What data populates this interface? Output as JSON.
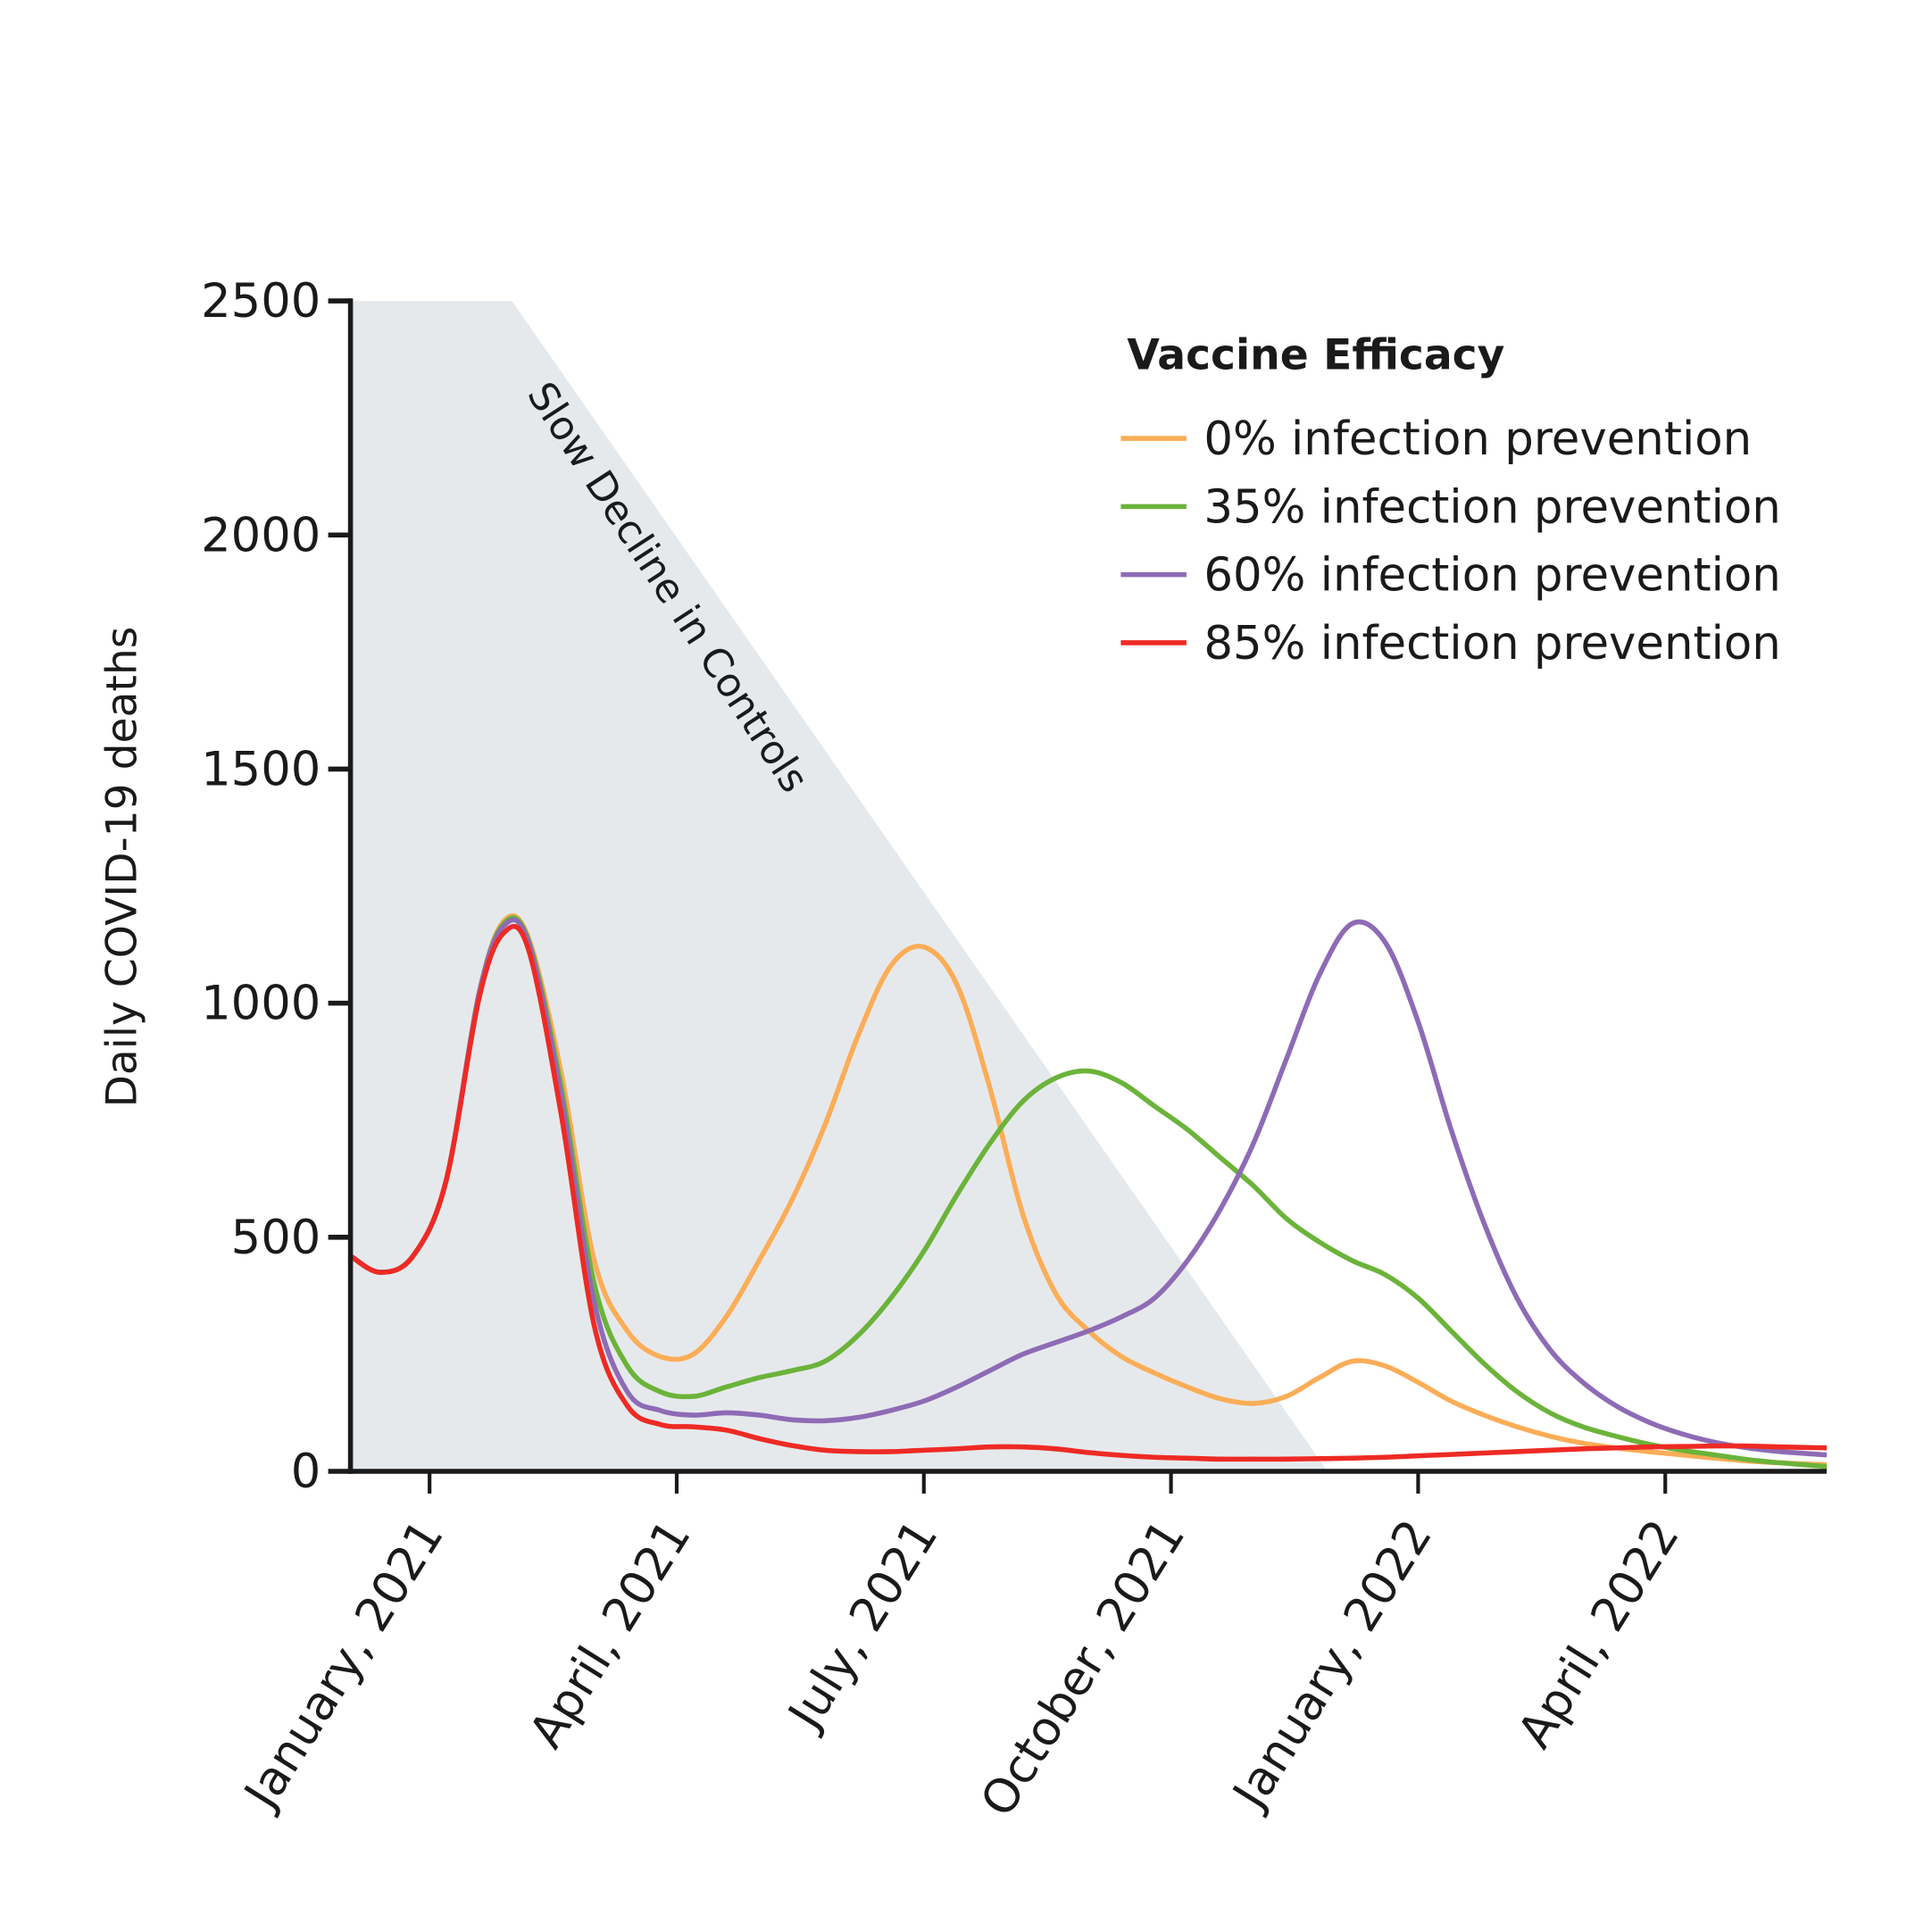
{
  "chart_data": {
    "type": "line",
    "title": "",
    "xlabel": "",
    "ylabel": "Daily COVID-19 deaths",
    "ylim": [
      0,
      2500
    ],
    "xlim_months_from_jan2021": [
      -0.96,
      16.96
    ],
    "yticks": [
      0,
      500,
      1000,
      1500,
      2000,
      2500
    ],
    "xticks": [
      {
        "month": 0,
        "label": "January, 2021"
      },
      {
        "month": 3,
        "label": "April, 2021"
      },
      {
        "month": 6,
        "label": "July, 2021"
      },
      {
        "month": 9,
        "label": "October, 2021"
      },
      {
        "month": 12,
        "label": "January, 2022"
      },
      {
        "month": 15,
        "label": "April, 2022"
      }
    ],
    "grid": false,
    "legend": {
      "title": "Vaccine Efficacy",
      "placement": "top-right"
    },
    "annotation": {
      "text": "Slow Decline in Controls",
      "region_color": "#e6e9ec",
      "region_top_start_month": 1.0,
      "region_bottom_end_month": 10.9
    },
    "x_unit": "months since January 2021",
    "series": [
      {
        "name": "0% infection prevention",
        "color": "#fbad57",
        "x": [
          -0.96,
          -0.6,
          -0.2,
          0.2,
          0.6,
          0.9,
          1.2,
          1.6,
          2.0,
          2.4,
          2.8,
          3.2,
          3.6,
          4.0,
          4.4,
          4.8,
          5.2,
          5.6,
          6.0,
          6.4,
          6.8,
          7.2,
          7.6,
          8.0,
          8.4,
          8.8,
          9.2,
          9.6,
          10.0,
          10.4,
          10.8,
          11.2,
          11.6,
          12.0,
          12.4,
          12.8,
          13.2,
          13.6,
          14.0,
          14.4,
          14.8,
          15.2,
          15.6,
          16.0,
          16.4,
          16.96
        ],
        "y": [
          460,
          425,
          460,
          620,
          1020,
          1175,
          1140,
          850,
          450,
          300,
          245,
          250,
          330,
          450,
          580,
          740,
          930,
          1080,
          1120,
          1040,
          820,
          550,
          380,
          300,
          245,
          210,
          180,
          155,
          145,
          160,
          200,
          235,
          225,
          190,
          150,
          120,
          95,
          75,
          60,
          50,
          42,
          35,
          28,
          22,
          18,
          14
        ]
      },
      {
        "name": "35% infection prevention",
        "color": "#6bb33a",
        "x": [
          -0.96,
          -0.6,
          -0.2,
          0.2,
          0.6,
          0.9,
          1.2,
          1.6,
          2.0,
          2.4,
          2.8,
          3.2,
          3.6,
          4.0,
          4.4,
          4.8,
          5.2,
          5.6,
          6.0,
          6.4,
          6.8,
          7.2,
          7.6,
          8.0,
          8.4,
          8.8,
          9.2,
          9.6,
          10.0,
          10.4,
          10.8,
          11.2,
          11.6,
          12.0,
          12.4,
          12.8,
          13.2,
          13.6,
          14.0,
          14.4,
          14.8,
          15.2,
          15.6,
          16.0,
          16.4,
          16.96
        ],
        "y": [
          460,
          425,
          460,
          620,
          1020,
          1170,
          1135,
          820,
          400,
          225,
          170,
          160,
          180,
          200,
          215,
          235,
          290,
          370,
          470,
          590,
          700,
          790,
          840,
          855,
          830,
          780,
          730,
          670,
          610,
          540,
          490,
          450,
          420,
          370,
          300,
          230,
          170,
          125,
          95,
          75,
          58,
          45,
          35,
          25,
          18,
          10
        ]
      },
      {
        "name": "60% infection prevention",
        "color": "#8e6bb5",
        "x": [
          -0.96,
          -0.6,
          -0.2,
          0.2,
          0.6,
          0.9,
          1.2,
          1.6,
          2.0,
          2.4,
          2.8,
          3.2,
          3.6,
          4.0,
          4.4,
          4.8,
          5.2,
          5.6,
          6.0,
          6.4,
          6.8,
          7.2,
          7.6,
          8.0,
          8.4,
          8.8,
          9.2,
          9.6,
          10.0,
          10.4,
          10.8,
          11.2,
          11.6,
          12.0,
          12.4,
          12.8,
          13.2,
          13.6,
          14.0,
          14.4,
          14.8,
          15.2,
          15.6,
          16.0,
          16.4,
          16.96
        ],
        "y": [
          460,
          425,
          460,
          620,
          1020,
          1165,
          1130,
          800,
          360,
          170,
          130,
          120,
          125,
          120,
          110,
          108,
          115,
          130,
          150,
          180,
          215,
          250,
          275,
          300,
          330,
          370,
          450,
          560,
          700,
          880,
          1060,
          1170,
          1130,
          960,
          730,
          530,
          370,
          260,
          190,
          140,
          105,
          80,
          62,
          50,
          42,
          35
        ]
      },
      {
        "name": "85% infection prevention",
        "color": "#ee2a24",
        "x": [
          -0.96,
          -0.6,
          -0.2,
          0.2,
          0.6,
          0.9,
          1.2,
          1.6,
          2.0,
          2.4,
          2.8,
          3.2,
          3.6,
          4.0,
          4.4,
          4.8,
          5.2,
          5.6,
          6.0,
          6.4,
          6.8,
          7.2,
          7.6,
          8.0,
          8.4,
          8.8,
          9.2,
          9.6,
          10.0,
          10.4,
          10.8,
          11.2,
          11.6,
          12.0,
          12.4,
          12.8,
          13.2,
          13.6,
          14.0,
          14.4,
          14.8,
          15.2,
          15.6,
          16.0,
          16.4,
          16.96
        ],
        "y": [
          460,
          425,
          460,
          620,
          1010,
          1150,
          1115,
          760,
          310,
          140,
          100,
          95,
          88,
          70,
          55,
          45,
          42,
          42,
          45,
          48,
          52,
          52,
          48,
          40,
          34,
          30,
          28,
          26,
          26,
          26,
          27,
          28,
          30,
          33,
          36,
          39,
          42,
          45,
          48,
          50,
          52,
          53,
          54,
          54,
          52,
          50
        ]
      }
    ]
  }
}
